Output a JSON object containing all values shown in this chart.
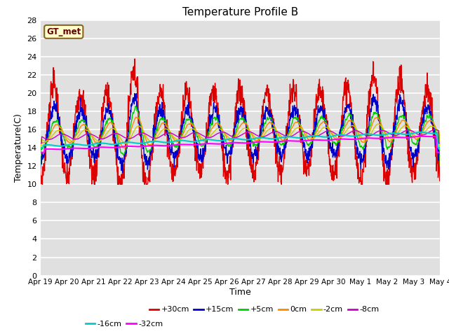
{
  "title": "Temperature Profile B",
  "xlabel": "Time",
  "ylabel": "Temperature(C)",
  "ylim": [
    0,
    28
  ],
  "yticks": [
    0,
    2,
    4,
    6,
    8,
    10,
    12,
    14,
    16,
    18,
    20,
    22,
    24,
    26,
    28
  ],
  "bg_color": "#e0e0e0",
  "grid_color": "#ffffff",
  "series": {
    "+30cm": {
      "color": "#dd0000",
      "lw": 1.0
    },
    "+15cm": {
      "color": "#0000cc",
      "lw": 1.0
    },
    "+5cm": {
      "color": "#00cc00",
      "lw": 1.0
    },
    "0cm": {
      "color": "#ff8800",
      "lw": 1.0
    },
    "-2cm": {
      "color": "#cccc00",
      "lw": 1.0
    },
    "-8cm": {
      "color": "#cc00cc",
      "lw": 1.0
    },
    "-16cm": {
      "color": "#00cccc",
      "lw": 1.5
    },
    "-32cm": {
      "color": "#ff00ff",
      "lw": 1.5
    }
  },
  "legend_label": "GT_met",
  "legend_bg": "#ffffcc",
  "legend_border": "#886622",
  "xtick_labels": [
    "Apr 19",
    "Apr 20",
    "Apr 21",
    "Apr 22",
    "Apr 23",
    "Apr 24",
    "Apr 25",
    "Apr 26",
    "Apr 27",
    "Apr 28",
    "Apr 29",
    "Apr 30",
    "May 1",
    "May 2",
    "May 3",
    "May 4"
  ],
  "figsize": [
    6.4,
    4.8
  ],
  "dpi": 100
}
